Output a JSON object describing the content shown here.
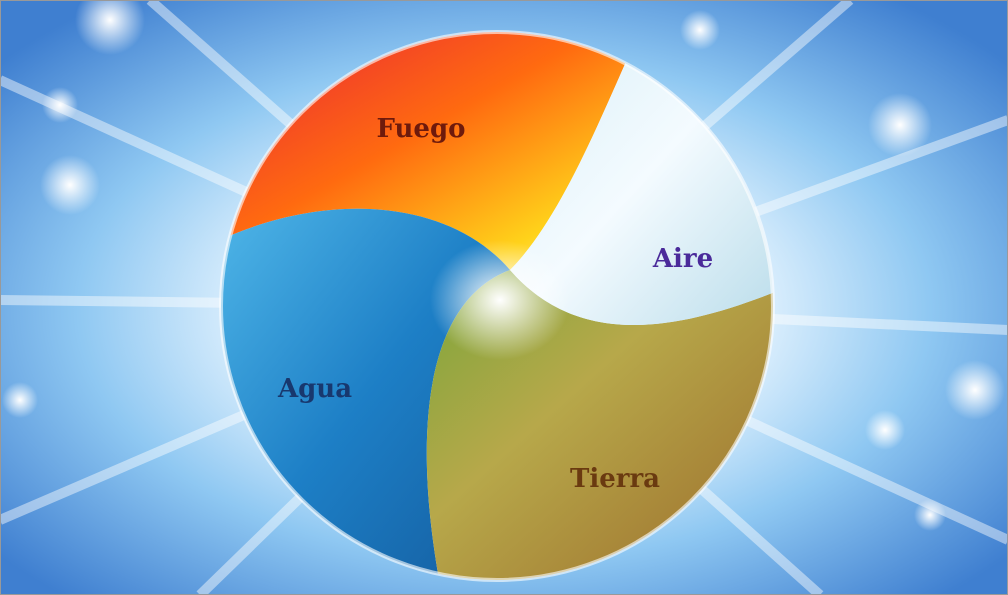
{
  "image": {
    "labels": [
      "Fuego",
      "Aire",
      "Agua",
      "Tierra"
    ]
  }
}
